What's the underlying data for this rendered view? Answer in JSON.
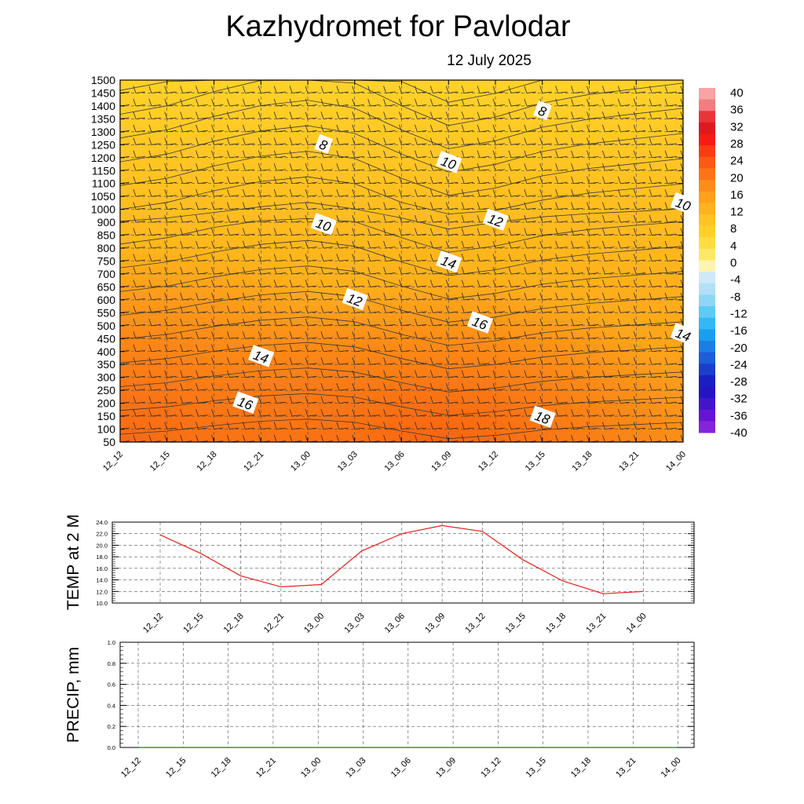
{
  "header": {
    "title": "Kazhydromet  for Pavlodar",
    "date": "12 July 2025"
  },
  "colors": {
    "temp_line": "#e8201c",
    "precip_line": "#1a7a1a",
    "contour": "#3a3a3a",
    "grid": "#555555"
  },
  "chart_data": [
    {
      "type": "heatmap",
      "name": "cross-section",
      "x": [
        "12_12",
        "12_15",
        "12_18",
        "12_21",
        "13_00",
        "13_03",
        "13_06",
        "13_09",
        "13_12",
        "13_15",
        "13_18",
        "13_21",
        "14_00"
      ],
      "y_ticks": [
        50,
        100,
        150,
        200,
        250,
        300,
        350,
        400,
        450,
        500,
        550,
        600,
        650,
        700,
        750,
        800,
        850,
        900,
        1000,
        1050,
        1100,
        1150,
        1200,
        1250,
        1300,
        1350,
        1400,
        1450,
        1500
      ],
      "ylim": [
        50,
        1500
      ],
      "colorbar": {
        "labels": [
          40,
          36,
          32,
          28,
          24,
          20,
          16,
          12,
          8,
          4,
          0,
          -4,
          -8,
          -12,
          -16,
          -20,
          -24,
          -28,
          -32,
          -36,
          -40
        ],
        "range": [
          -40,
          40
        ]
      },
      "contour_labels": [
        {
          "text": "8",
          "time": "13_01",
          "level": 1250
        },
        {
          "text": "8",
          "time": "13_15",
          "level": 1380
        },
        {
          "text": "10",
          "time": "13_09",
          "level": 1180
        },
        {
          "text": "10",
          "time": "14_00",
          "level": 1020
        },
        {
          "text": "10",
          "time": "13_01",
          "level": 890
        },
        {
          "text": "12",
          "time": "13_12",
          "level": 915
        },
        {
          "text": "12",
          "time": "13_03",
          "level": 600
        },
        {
          "text": "14",
          "time": "13_09",
          "level": 745
        },
        {
          "text": "14",
          "time": "12_21",
          "level": 380
        },
        {
          "text": "14",
          "time": "14_00",
          "level": 465
        },
        {
          "text": "16",
          "time": "13_11",
          "level": 510
        },
        {
          "text": "16",
          "time": "12_20",
          "level": 200
        },
        {
          "text": "18",
          "time": "13_15",
          "level": 145
        }
      ]
    },
    {
      "type": "line",
      "name": "temp",
      "ylabel": "TEMP at 2 M",
      "x": [
        "12_12",
        "12_15",
        "12_18",
        "12_21",
        "13_00",
        "13_03",
        "13_06",
        "13_09",
        "13_12",
        "13_15",
        "13_18",
        "13_21",
        "14_00"
      ],
      "y_ticks": [
        "10.0",
        "12.0",
        "14.0",
        "16.0",
        "18.0",
        "20.0",
        "22.0",
        "24.0"
      ],
      "ylim": [
        10,
        24
      ],
      "series": [
        {
          "values": [
            21.8,
            18.6,
            14.7,
            12.8,
            13.2,
            19.0,
            22.0,
            23.4,
            22.4,
            17.5,
            13.8,
            11.6,
            12.0
          ]
        }
      ]
    },
    {
      "type": "line",
      "name": "precip",
      "ylabel": "PRECIP, mm",
      "x": [
        "12_12",
        "12_15",
        "12_18",
        "12_21",
        "13_00",
        "13_03",
        "13_06",
        "13_09",
        "13_12",
        "13_15",
        "13_18",
        "13_21",
        "14_00"
      ],
      "y_ticks": [
        "0.0",
        "0.2",
        "0.4",
        "0.6",
        "0.8",
        "1.0"
      ],
      "ylim": [
        0,
        1
      ],
      "series": [
        {
          "values": [
            0,
            0,
            0,
            0,
            0,
            0,
            0,
            0,
            0,
            0,
            0,
            0,
            0
          ]
        }
      ]
    }
  ]
}
